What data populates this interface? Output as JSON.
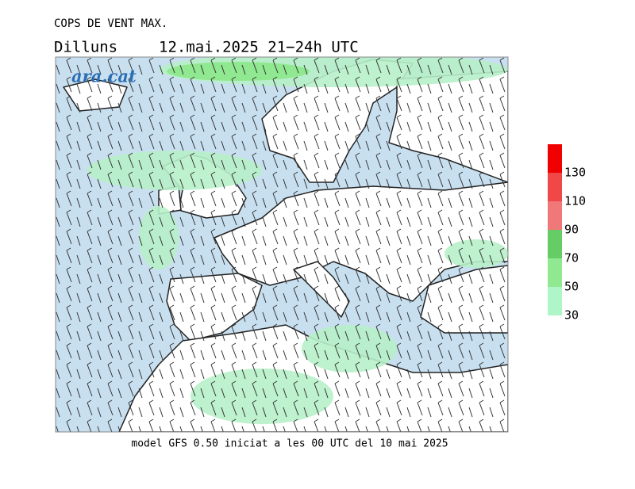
{
  "header": {
    "title": "COPS DE VENT MAX.",
    "day": "Dilluns",
    "period": "12.mai.2025 21−24h UTC"
  },
  "logo": "ara.cat",
  "legend": {
    "levels": [
      30,
      50,
      70,
      90,
      110,
      130
    ],
    "colors": [
      "#aef5c8",
      "#90e890",
      "#66cc66",
      "#f07878",
      "#f04848",
      "#f00000"
    ]
  },
  "footer": "model GFS 0.50 iniciat a les 00 UTC del 10 mai 2025"
}
